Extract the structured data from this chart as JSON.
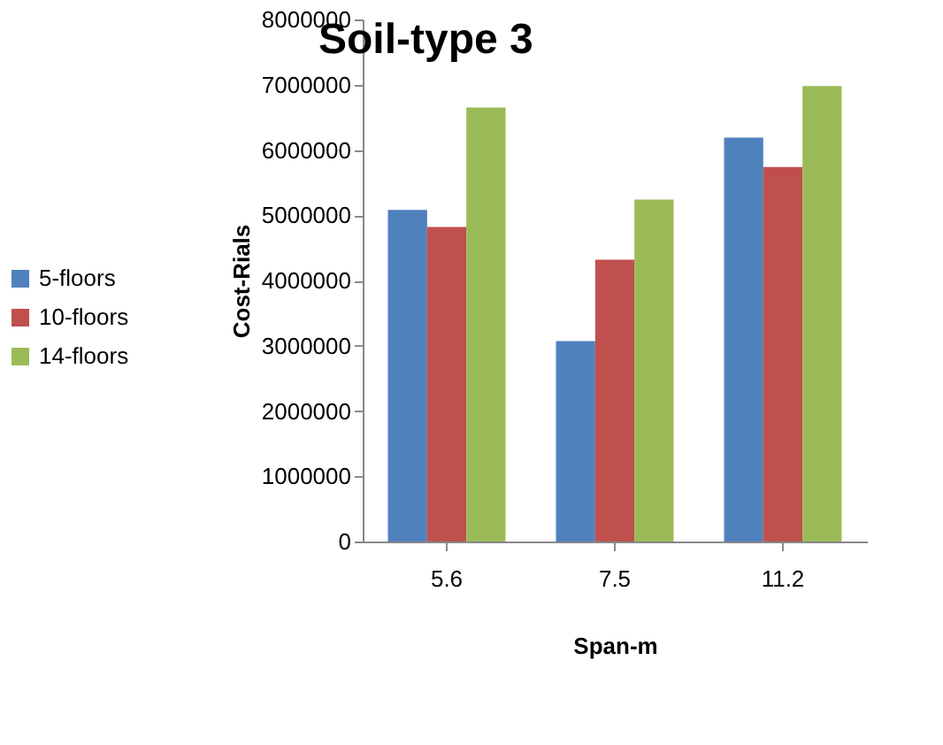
{
  "chart_data": {
    "type": "bar",
    "title": "Soil-type 3",
    "xlabel": "Span-m",
    "ylabel": "Cost-Rials",
    "categories": [
      "5.6",
      "7.5",
      "11.2"
    ],
    "series": [
      {
        "name": "5-floors",
        "color": "#4f81bd",
        "values": [
          5080000,
          3070000,
          6190000
        ]
      },
      {
        "name": "10-floors",
        "color": "#c0504d",
        "values": [
          4820000,
          4320000,
          5740000
        ]
      },
      {
        "name": "14-floors",
        "color": "#9bbb59",
        "values": [
          6650000,
          5240000,
          6980000
        ]
      }
    ],
    "ylim": [
      0,
      8000000
    ],
    "yticks": [
      0,
      1000000,
      2000000,
      3000000,
      4000000,
      5000000,
      6000000,
      7000000,
      8000000
    ],
    "grid": false,
    "legend": "left"
  }
}
